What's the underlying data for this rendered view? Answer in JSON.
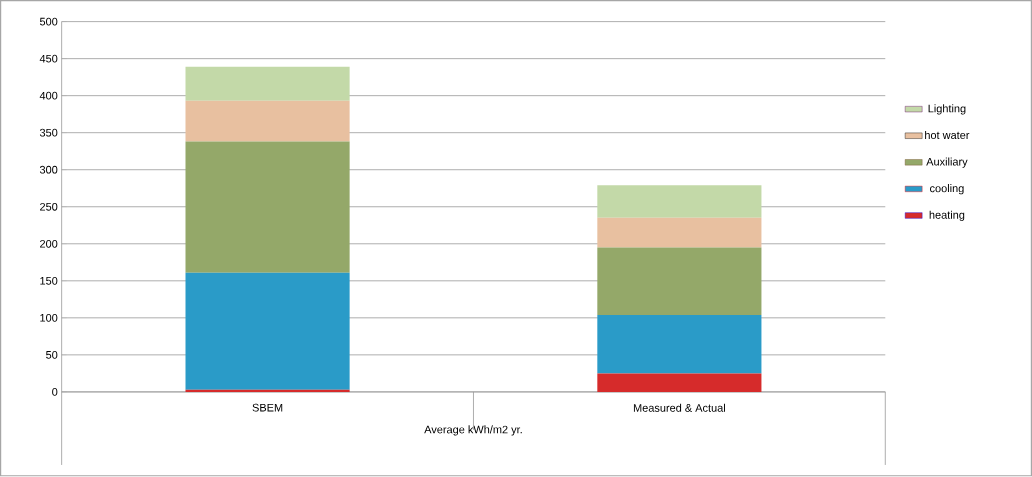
{
  "chart_data": {
    "type": "bar",
    "stacked": true,
    "categories": [
      "SBEM",
      "Measured & Actual"
    ],
    "xlabel": "Average kWh/m2 yr.",
    "ylim": [
      0,
      500
    ],
    "yticks": [
      0,
      50,
      100,
      150,
      200,
      250,
      300,
      350,
      400,
      450,
      500
    ],
    "grid": "y",
    "legend": "right",
    "series": [
      {
        "name": "heating",
        "color": "#d62b2b",
        "values": [
          3,
          25
        ]
      },
      {
        "name": "cooling",
        "color": "#2a9bc8",
        "values": [
          158,
          79
        ]
      },
      {
        "name": "Auxiliary",
        "color": "#94a869",
        "values": [
          177,
          91
        ]
      },
      {
        "name": "hot water",
        "color": "#e8c0a0",
        "values": [
          55,
          40
        ]
      },
      {
        "name": "Lighting",
        "color": "#c3d9a8",
        "values": [
          46,
          44
        ]
      }
    ]
  }
}
